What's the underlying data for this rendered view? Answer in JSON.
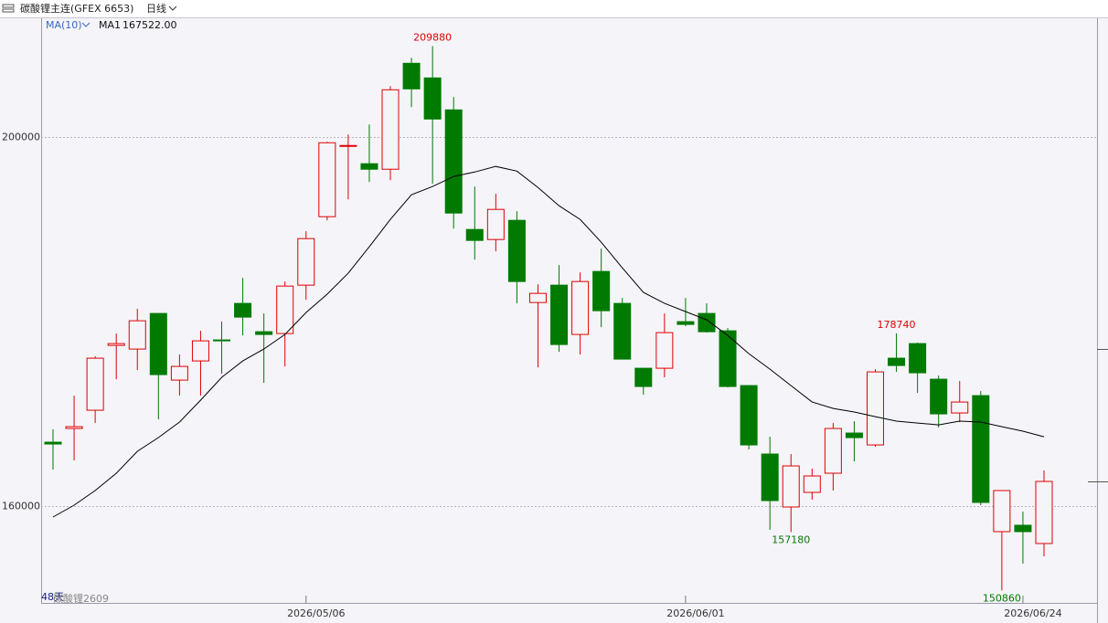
{
  "chart_data": {
    "type": "candlestick",
    "title": "碳酸锂主连(GFEX 6653)",
    "period": "日线",
    "indicator": "MA(10)",
    "days_label": "48天",
    "contract": "碳酸锂2609",
    "up_color": "#e00000",
    "down_color": "#007a00",
    "categories": [
      null,
      null,
      null,
      null,
      null,
      null,
      null,
      null,
      null,
      null,
      null,
      null,
      "2026/05/06",
      null,
      null,
      null,
      null,
      null,
      null,
      null,
      null,
      null,
      null,
      null,
      null,
      null,
      null,
      null,
      null,
      null,
      "2026/06/01",
      null,
      null,
      null,
      null,
      null,
      null,
      null,
      null,
      null,
      null,
      null,
      null,
      null,
      null,
      null,
      "2026/06/24",
      null
    ],
    "open": [
      166930,
      168415,
      170395,
      177424,
      177028,
      180889,
      173662,
      175741,
      178018,
      181978,
      178909,
      178711,
      183958,
      191383,
      199006,
      197125,
      196531,
      208015,
      206431,
      202966,
      189997,
      188908,
      190987,
      182077,
      183958,
      178612,
      185443,
      181978,
      174949,
      174949,
      179998,
      180889,
      179008,
      173068,
      165643,
      159901,
      161485,
      163564,
      167920,
      166633,
      176038,
      177622,
      173761,
      170098,
      171979,
      157228,
      157921,
      155941
    ],
    "high": [
      168316,
      171979,
      176236,
      178711,
      181384,
      180889,
      176434,
      179008,
      179998,
      184750,
      180889,
      184354,
      189799,
      199501,
      200293,
      201382,
      205540,
      208609,
      209880,
      204352,
      194650,
      193858,
      191977,
      184057,
      186136,
      185344,
      187918,
      182572,
      174949,
      180889,
      182572,
      181978,
      179305,
      173068,
      167524,
      165643,
      164059,
      169009,
      169207,
      174850,
      178740,
      177721,
      174157,
      173563,
      172474,
      161683,
      159406,
      163861
    ],
    "low": [
      163960,
      164950,
      169009,
      173761,
      174751,
      169405,
      171979,
      171979,
      174355,
      178513,
      173365,
      175147,
      182374,
      190987,
      193264,
      195145,
      195343,
      203263,
      194947,
      190096,
      186730,
      187621,
      181978,
      175048,
      176731,
      176434,
      179404,
      175939,
      172078,
      173959,
      179503,
      178810,
      172870,
      166138,
      157426,
      157180,
      160693,
      161683,
      164851,
      166435,
      174553,
      172276,
      168514,
      169108,
      160099,
      150860,
      153763,
      154555
    ],
    "close": [
      166730,
      168613,
      176038,
      177622,
      180097,
      174256,
      175147,
      177919,
      177919,
      180493,
      178612,
      183859,
      189007,
      199402,
      199105,
      196531,
      205144,
      205243,
      201976,
      191779,
      188809,
      192175,
      184354,
      183067,
      177523,
      184354,
      181186,
      175939,
      172969,
      178810,
      179701,
      178909,
      172969,
      166633,
      160594,
      164356,
      163267,
      168415,
      167425,
      174553,
      175246,
      174454,
      169999,
      171286,
      160396,
      161683,
      157228,
      162673
    ],
    "high_labels": [
      null,
      null,
      null,
      null,
      null,
      null,
      null,
      null,
      null,
      null,
      null,
      null,
      null,
      null,
      null,
      null,
      null,
      null,
      "209880",
      null,
      null,
      null,
      null,
      null,
      null,
      null,
      null,
      null,
      null,
      null,
      null,
      null,
      null,
      null,
      null,
      null,
      null,
      null,
      null,
      null,
      "178740",
      null,
      null,
      null,
      null,
      null,
      null,
      null
    ],
    "low_labels": [
      null,
      null,
      null,
      null,
      null,
      null,
      null,
      null,
      null,
      null,
      null,
      null,
      null,
      null,
      null,
      null,
      null,
      null,
      null,
      null,
      null,
      null,
      null,
      null,
      null,
      null,
      null,
      null,
      null,
      null,
      null,
      null,
      null,
      null,
      null,
      "157180",
      null,
      null,
      null,
      null,
      null,
      null,
      null,
      null,
      null,
      "150860",
      null,
      null
    ],
    "ma": {
      "name": "MA1",
      "color": "#000000",
      "values": [
        158810,
        160100,
        161680,
        163560,
        165940,
        167430,
        169110,
        171480,
        173960,
        175740,
        177030,
        178610,
        180990,
        182970,
        185250,
        188120,
        191090,
        193760,
        194650,
        195740,
        196230,
        196830,
        196330,
        194550,
        192570,
        191090,
        188610,
        185840,
        183170,
        181980,
        181090,
        180200,
        178510,
        176530,
        174850,
        173070,
        171290,
        170590,
        170200,
        169700,
        169210,
        169010,
        168810,
        169210,
        169110,
        168610,
        168120,
        167522
      ],
      "value_labels": [
        null,
        null,
        null,
        null,
        null,
        null,
        null,
        null,
        null,
        null,
        null,
        null,
        null,
        null,
        null,
        null,
        null,
        null,
        null,
        null,
        null,
        null,
        null,
        null,
        null,
        null,
        null,
        null,
        null,
        null,
        null,
        null,
        null,
        null,
        null,
        null,
        null,
        null,
        null,
        null,
        null,
        null,
        null,
        null,
        null,
        null,
        null,
        "167522.00"
      ]
    },
    "ylim": [
      149500,
      212900
    ],
    "yticks": [
      160000,
      200000
    ],
    "grid": true
  }
}
